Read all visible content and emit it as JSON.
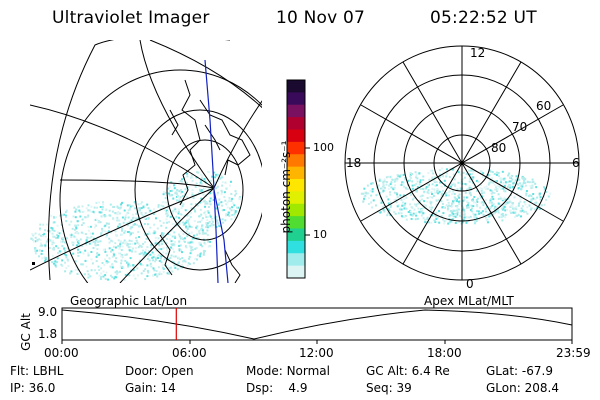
{
  "header": {
    "title": "Ultraviolet Imager",
    "date": "10 Nov 07",
    "time": "05:22:52 UT"
  },
  "colorbar": {
    "unit_label": "photon cm⁻²s⁻¹",
    "ticks": [
      "100",
      "10"
    ],
    "colors": [
      "#1b0a30",
      "#3a0a5a",
      "#7a1060",
      "#b00030",
      "#d80010",
      "#ff3000",
      "#ff7800",
      "#ffb400",
      "#ffe600",
      "#e0f000",
      "#a0e800",
      "#50dc30",
      "#20d090",
      "#30e0e0",
      "#a0ecec",
      "#dcf4f4"
    ]
  },
  "left_map": {
    "caption": "Geographic Lat/Lon"
  },
  "right_map": {
    "caption": "Apex  MLat/MLT",
    "mlt_labels": {
      "top": "12",
      "left": "18",
      "right": "6",
      "bottom": "0"
    },
    "lat_labels": [
      "60",
      "70",
      "80"
    ]
  },
  "altitude_plot": {
    "ylabel": "GC Alt",
    "yticks": [
      "9.0",
      "1.8"
    ],
    "xticks": [
      "00:00",
      "06:00",
      "12:00",
      "18:00",
      "23:59"
    ],
    "current_time_marker_hours": 5.38,
    "marker_color": "#e00000"
  },
  "footer": {
    "row1": [
      {
        "label": "Flt:",
        "value": "LBHL"
      },
      {
        "label": "Door:",
        "value": "Open"
      },
      {
        "label": "Mode:",
        "value": "Normal"
      },
      {
        "label": "GC Alt:",
        "value": "6.4 Re"
      },
      {
        "label": "GLat:",
        "value": "-67.9"
      }
    ],
    "row2": [
      {
        "label": "IP:",
        "value": "36.0"
      },
      {
        "label": "Gain:",
        "value": "14"
      },
      {
        "label": "Dsp:",
        "value": "4.9"
      },
      {
        "label": "Seq:",
        "value": "39"
      },
      {
        "label": "GLon:",
        "value": "208.4"
      }
    ]
  }
}
